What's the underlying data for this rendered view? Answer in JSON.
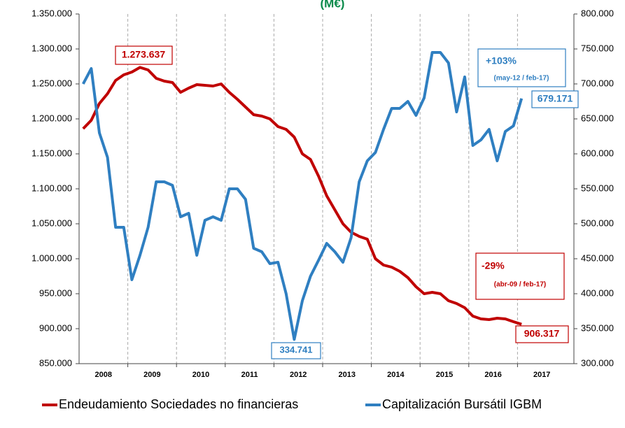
{
  "chart_data": {
    "type": "line",
    "title": "(M€)",
    "categories": [
      null,
      null,
      null,
      "2008",
      null,
      null,
      null,
      null,
      null,
      "2009",
      null,
      null,
      null,
      null,
      null,
      "2010",
      null,
      null,
      null,
      null,
      null,
      "2011",
      null,
      null,
      null,
      null,
      null,
      "2012",
      null,
      null,
      null,
      null,
      null,
      "2013",
      null,
      null,
      null,
      null,
      null,
      "2014",
      null,
      null,
      null,
      null,
      null,
      "2015",
      null,
      null,
      null,
      null,
      null,
      "2016",
      null,
      null,
      null,
      null,
      null,
      "2017",
      null,
      null
    ],
    "series": [
      {
        "name": "Endeudamiento Sociedades no financieras",
        "color": "#c00000",
        "axis": "y",
        "values": [
          1186000,
          1198000,
          1222000,
          1236000,
          1255000,
          1263000,
          1267000,
          1273637,
          1270000,
          1258000,
          1254000,
          1252000,
          1238000,
          1244000,
          1249000,
          1248000,
          1247000,
          1250000,
          1238000,
          1228000,
          1217000,
          1206000,
          1204000,
          1200000,
          1189000,
          1185000,
          1174000,
          1150000,
          1142000,
          1118000,
          1090000,
          1070000,
          1050000,
          1038000,
          1032000,
          1028000,
          1000000,
          991000,
          988000,
          982000,
          973000,
          960000,
          950000,
          952000,
          950000,
          940000,
          936000,
          930000,
          918000,
          914000,
          913000,
          915000,
          914000,
          910000,
          906317,
          null,
          null,
          null,
          null,
          null
        ]
      },
      {
        "name": "Capitalización Bursátil IGBM",
        "color": "#2f7fc1",
        "axis": "y2",
        "values": [
          700000,
          722000,
          630000,
          595000,
          495000,
          495000,
          420000,
          455000,
          495000,
          560000,
          560000,
          555000,
          510000,
          515000,
          455000,
          505000,
          510000,
          505000,
          550000,
          550000,
          535000,
          465000,
          460000,
          443000,
          445000,
          400000,
          334741,
          390000,
          425000,
          448000,
          472000,
          460000,
          445000,
          480000,
          560000,
          590000,
          602000,
          635000,
          665000,
          665000,
          675000,
          655000,
          680000,
          745000,
          745000,
          730000,
          660000,
          710000,
          612000,
          620000,
          635000,
          590000,
          632000,
          640000,
          679171,
          null,
          null,
          null,
          null,
          null
        ]
      }
    ],
    "ylim": [
      850000,
      1350000
    ],
    "yticks": [
      {
        "value": 850000,
        "label": "850.000"
      },
      {
        "value": 900000,
        "label": "900.000"
      },
      {
        "value": 950000,
        "label": "950.000"
      },
      {
        "value": 1000000,
        "label": "1.000.000"
      },
      {
        "value": 1050000,
        "label": "1.050.000"
      },
      {
        "value": 1100000,
        "label": "1.100.000"
      },
      {
        "value": 1150000,
        "label": "1.150.000"
      },
      {
        "value": 1200000,
        "label": "1.200.000"
      },
      {
        "value": 1250000,
        "label": "1.250.000"
      },
      {
        "value": 1300000,
        "label": "1.300.000"
      },
      {
        "value": 1350000,
        "label": "1.350.000"
      }
    ],
    "y2lim": [
      300000,
      800000
    ],
    "y2ticks": [
      {
        "value": 300000,
        "label": "300.000"
      },
      {
        "value": 350000,
        "label": "350.000"
      },
      {
        "value": 400000,
        "label": "400.000"
      },
      {
        "value": 450000,
        "label": "450.000"
      },
      {
        "value": 500000,
        "label": "500.000"
      },
      {
        "value": 550000,
        "label": "550.000"
      },
      {
        "value": 600000,
        "label": "600.000"
      },
      {
        "value": 650000,
        "label": "650.000"
      },
      {
        "value": 700000,
        "label": "700.000"
      },
      {
        "value": 750000,
        "label": "750.000"
      },
      {
        "value": 800000,
        "label": "800.000"
      }
    ],
    "annotations": [
      {
        "text": "1.273.637"
      },
      {
        "text": "+103%"
      },
      {
        "text": "(may-12 / feb-17)"
      },
      {
        "text": "679.171"
      },
      {
        "text": "-29%"
      },
      {
        "text": "(abr-09 / feb-17)"
      },
      {
        "text": "906.317"
      },
      {
        "text": "334.741"
      }
    ],
    "legend": "bottom"
  }
}
